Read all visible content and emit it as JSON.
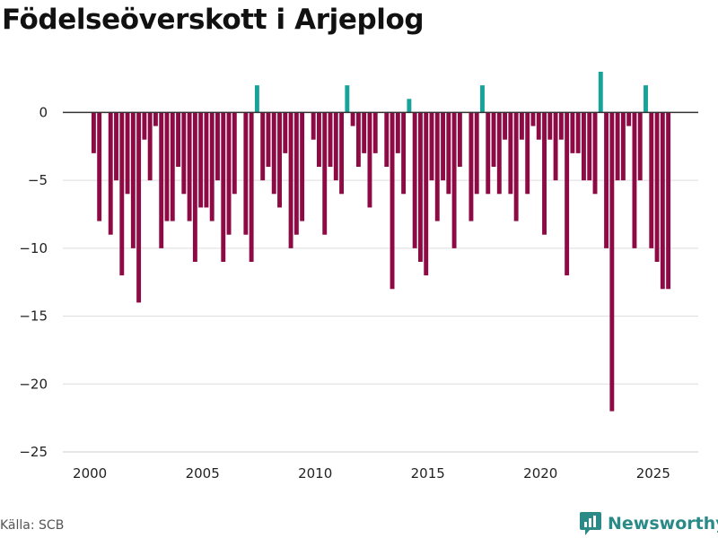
{
  "chart_data": {
    "type": "bar",
    "title": "Födelseöverskott i Arjeplog",
    "xlabel": "",
    "ylabel": "",
    "ylim": [
      -25,
      3
    ],
    "xlim": [
      1998.8,
      2027.0
    ],
    "yticks": [
      0,
      -5,
      -10,
      -15,
      -20,
      -25
    ],
    "ytick_labels": [
      "0",
      "−5",
      "−10",
      "−15",
      "−20",
      "−25"
    ],
    "xticks": [
      2000,
      2005,
      2010,
      2015,
      2020,
      2025
    ],
    "xtick_labels": [
      "2000",
      "2005",
      "2010",
      "2015",
      "2020",
      "2025"
    ],
    "grid": true,
    "colors": {
      "positive": "#16a39a",
      "negative": "#8e0a45",
      "zero_line": "#333333",
      "grid": "#dddddd"
    },
    "x_start": 2000.17,
    "x_step": 0.25,
    "values": [
      -3,
      -8,
      0,
      -9,
      -5,
      -12,
      -6,
      -10,
      -14,
      -2,
      -5,
      -1,
      -10,
      -8,
      -8,
      -4,
      -6,
      -8,
      -11,
      -7,
      -7,
      -8,
      -5,
      -11,
      -9,
      -6,
      0,
      -9,
      -11,
      2,
      -5,
      -4,
      -6,
      -7,
      -3,
      -10,
      -9,
      -8,
      0,
      -2,
      -4,
      -9,
      -4,
      -5,
      -6,
      2,
      -1,
      -4,
      -3,
      -7,
      -3,
      0,
      -4,
      -13,
      -3,
      -6,
      1,
      -10,
      -11,
      -12,
      -5,
      -8,
      -5,
      -6,
      -10,
      -4,
      0,
      -8,
      -6,
      2,
      -6,
      -4,
      -6,
      -2,
      -6,
      -8,
      -2,
      -6,
      -1,
      -2,
      -9,
      -2,
      -5,
      -2,
      -12,
      -3,
      -3,
      -5,
      -5,
      -6,
      3,
      -10,
      -22,
      -5,
      -5,
      -1,
      -10,
      -5,
      2,
      -10,
      -11,
      -13,
      -13
    ]
  },
  "footer": {
    "source": "Källa: SCB",
    "brand": "Newsworthy"
  }
}
